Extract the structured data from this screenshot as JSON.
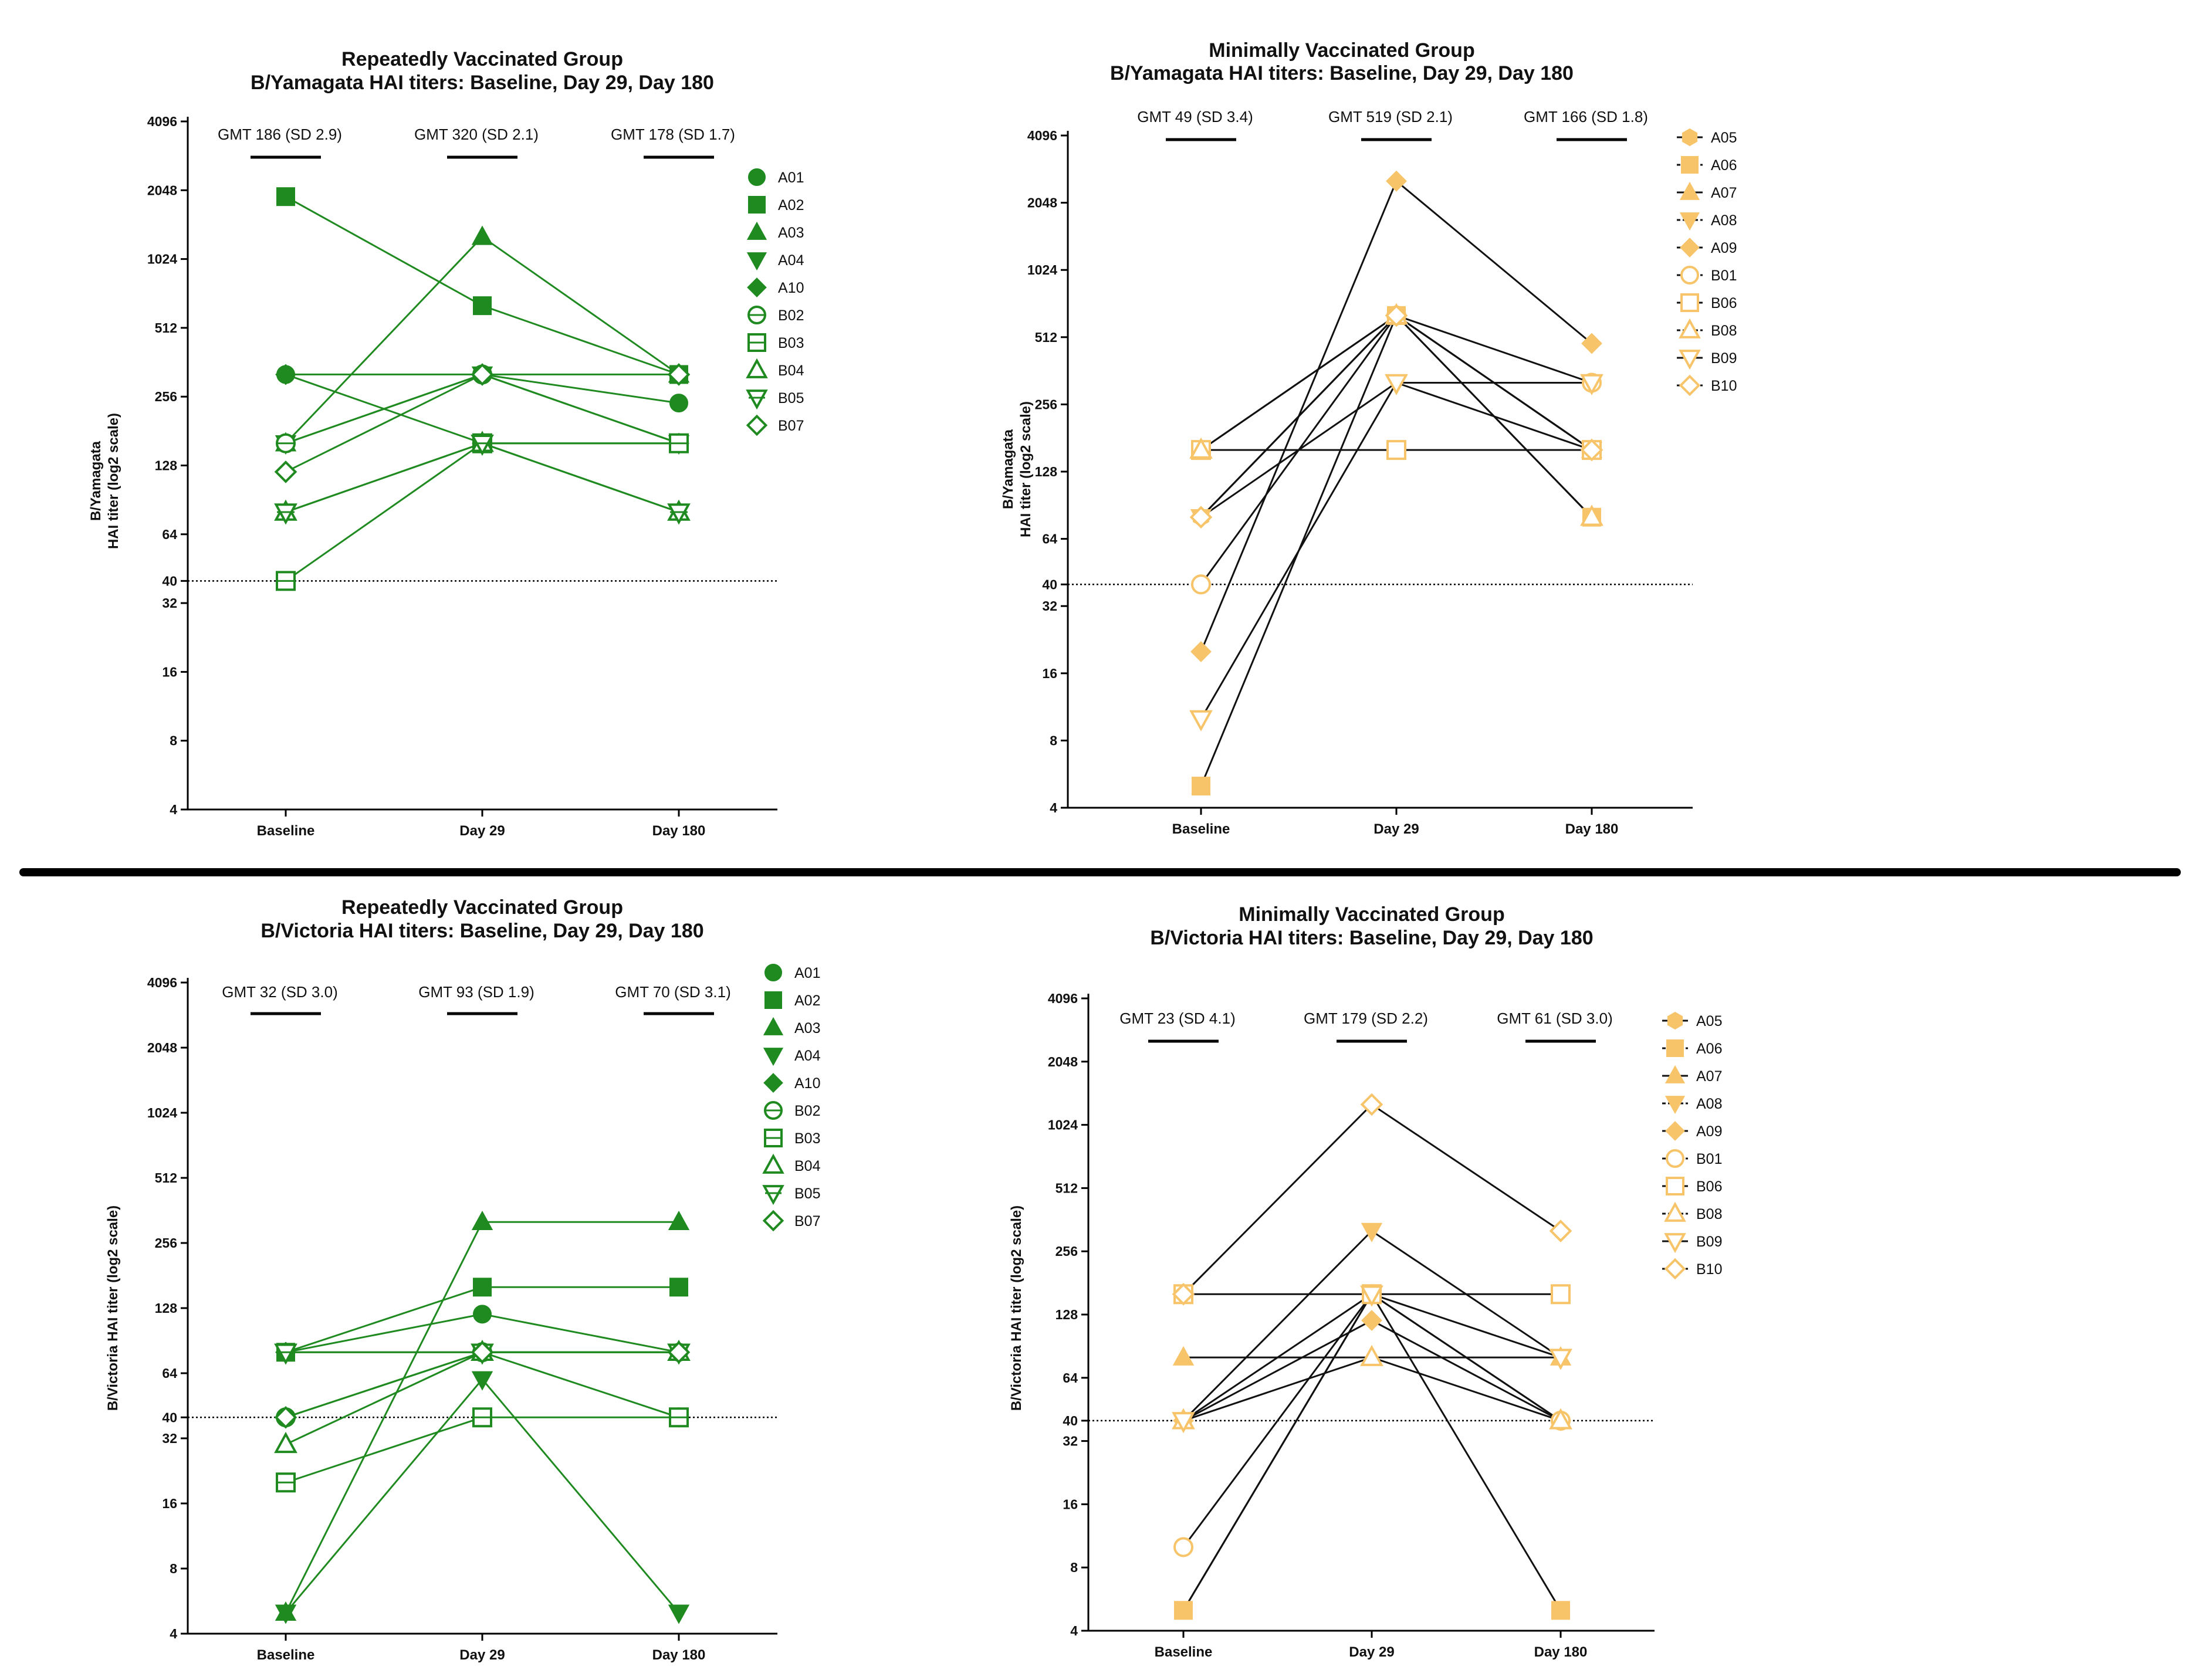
{
  "colors": {
    "green": "#1f8a1f",
    "gold": "#f7c46a",
    "line_black": "#111111"
  },
  "chart_data": [
    {
      "type": "line",
      "title": "Repeatedly Vaccinated Group",
      "subtitle": "B/Yamagata HAI titers: Baseline, Day 29, Day 180",
      "ylabel_lines": [
        "B/Yamagata",
        "HAI titer (log2 scale)"
      ],
      "categories": [
        "Baseline",
        "Day 29",
        "Day 180"
      ],
      "yscale": "log2",
      "ylim": [
        4,
        4096
      ],
      "yticks": [
        "4",
        "8",
        "16",
        "32",
        "40",
        "64",
        "128",
        "256",
        "512",
        "1024",
        "2048",
        "4096"
      ],
      "threshold": 40,
      "gmt_labels": [
        "GMT 186 (SD 2.9)",
        "GMT 320 (SD 2.1)",
        "GMT 178 (SD 1.7)"
      ],
      "legend": [
        "A01",
        "A02",
        "A03",
        "A04",
        "A10",
        "B02",
        "B03",
        "B04",
        "B05",
        "B07"
      ],
      "series": [
        {
          "name": "A01",
          "values": [
            320,
            320,
            240
          ]
        },
        {
          "name": "A02",
          "values": [
            1920,
            640,
            320
          ]
        },
        {
          "name": "A03",
          "values": [
            160,
            1280,
            320
          ]
        },
        {
          "name": "A04",
          "values": [
            160,
            320,
            160
          ]
        },
        {
          "name": "A10",
          "values": [
            320,
            160,
            160
          ]
        },
        {
          "name": "B02",
          "values": [
            160,
            320,
            160
          ]
        },
        {
          "name": "B03",
          "values": [
            40,
            160,
            160
          ]
        },
        {
          "name": "B04",
          "values": [
            80,
            160,
            80
          ]
        },
        {
          "name": "B05",
          "values": [
            80,
            160,
            80
          ]
        },
        {
          "name": "B07",
          "values": [
            120,
            320,
            320
          ]
        }
      ]
    },
    {
      "type": "line",
      "title": "Minimally Vaccinated Group",
      "subtitle": "B/Yamagata HAI titers: Baseline, Day 29, Day 180",
      "ylabel_lines": [
        "B/Yamagata",
        "HAI titer (log2 scale)"
      ],
      "categories": [
        "Baseline",
        "Day 29",
        "Day 180"
      ],
      "yscale": "log2",
      "ylim": [
        4,
        4096
      ],
      "yticks": [
        "4",
        "8",
        "16",
        "32",
        "40",
        "64",
        "128",
        "256",
        "512",
        "1024",
        "2048",
        "4096"
      ],
      "threshold": 40,
      "gmt_labels": [
        "GMT 49 (SD 3.4)",
        "GMT 519 (SD 2.1)",
        "GMT 166 (SD 1.8)"
      ],
      "legend": [
        "A05",
        "A06",
        "A07",
        "A08",
        "A09",
        "B01",
        "B06",
        "B08",
        "B09",
        "B10"
      ],
      "series": [
        {
          "name": "A05",
          "values": [
            80,
            640,
            160
          ]
        },
        {
          "name": "A06",
          "values": [
            5,
            640,
            80
          ]
        },
        {
          "name": "A07",
          "values": [
            160,
            640,
            160
          ]
        },
        {
          "name": "A08",
          "values": [
            80,
            320,
            160
          ]
        },
        {
          "name": "A09",
          "values": [
            20,
            2560,
            480
          ]
        },
        {
          "name": "B01",
          "values": [
            40,
            640,
            320
          ]
        },
        {
          "name": "B06",
          "values": [
            160,
            160,
            160
          ]
        },
        {
          "name": "B08",
          "values": [
            160,
            640,
            80
          ]
        },
        {
          "name": "B09",
          "values": [
            10,
            320,
            320
          ]
        },
        {
          "name": "B10",
          "values": [
            80,
            640,
            160
          ]
        }
      ]
    },
    {
      "type": "line",
      "title": "Repeatedly Vaccinated Group",
      "subtitle": "B/Victoria HAI titers: Baseline, Day 29, Day 180",
      "ylabel_lines": [
        "B/Victoria HAI titer (log2 scale)"
      ],
      "categories": [
        "Baseline",
        "Day 29",
        "Day 180"
      ],
      "yscale": "log2",
      "ylim": [
        4,
        4096
      ],
      "yticks": [
        "4",
        "8",
        "16",
        "32",
        "40",
        "64",
        "128",
        "256",
        "512",
        "1024",
        "2048",
        "4096"
      ],
      "threshold": 40,
      "gmt_labels": [
        "GMT 32 (SD 3.0)",
        "GMT 93 (SD 1.9)",
        "GMT 70 (SD 3.1)"
      ],
      "legend": [
        "A01",
        "A02",
        "A03",
        "A04",
        "A10",
        "B02",
        "B03",
        "B04",
        "B05",
        "B07"
      ],
      "series": [
        {
          "name": "A01",
          "values": [
            80,
            120,
            80
          ]
        },
        {
          "name": "A02",
          "values": [
            80,
            160,
            160
          ]
        },
        {
          "name": "A03",
          "values": [
            5,
            320,
            320
          ]
        },
        {
          "name": "A04",
          "values": [
            5,
            60,
            5
          ]
        },
        {
          "name": "A10",
          "values": [
            80,
            80,
            80
          ]
        },
        {
          "name": "B02",
          "values": [
            40,
            80,
            40
          ]
        },
        {
          "name": "B03",
          "values": [
            20,
            40,
            40
          ]
        },
        {
          "name": "B04",
          "values": [
            30,
            80,
            80
          ]
        },
        {
          "name": "B05",
          "values": [
            80,
            80,
            80
          ]
        },
        {
          "name": "B07",
          "values": [
            40,
            80,
            80
          ]
        }
      ]
    },
    {
      "type": "line",
      "title": "Minimally Vaccinated Group",
      "subtitle": "B/Victoria HAI titers: Baseline, Day 29, Day 180",
      "ylabel_lines": [
        "B/Victoria HAI titer (log2 scale)"
      ],
      "categories": [
        "Baseline",
        "Day 29",
        "Day 180"
      ],
      "yscale": "log2",
      "ylim": [
        4,
        4096
      ],
      "yticks": [
        "4",
        "8",
        "16",
        "32",
        "40",
        "64",
        "128",
        "256",
        "512",
        "1024",
        "2048",
        "4096"
      ],
      "threshold": 40,
      "gmt_labels": [
        "GMT 23 (SD 4.1)",
        "GMT 179 (SD 2.2)",
        "GMT 61 (SD 3.0)"
      ],
      "legend": [
        "A05",
        "A06",
        "A07",
        "A08",
        "A09",
        "B01",
        "B06",
        "B08",
        "B09",
        "B10"
      ],
      "series": [
        {
          "name": "A05",
          "values": [
            5,
            160,
            40
          ]
        },
        {
          "name": "A06",
          "values": [
            5,
            160,
            5
          ]
        },
        {
          "name": "A07",
          "values": [
            80,
            80,
            80
          ]
        },
        {
          "name": "A08",
          "values": [
            40,
            320,
            80
          ]
        },
        {
          "name": "A09",
          "values": [
            40,
            120,
            40
          ]
        },
        {
          "name": "B01",
          "values": [
            10,
            160,
            40
          ]
        },
        {
          "name": "B06",
          "values": [
            160,
            160,
            160
          ]
        },
        {
          "name": "B08",
          "values": [
            40,
            80,
            40
          ]
        },
        {
          "name": "B09",
          "values": [
            40,
            160,
            80
          ]
        },
        {
          "name": "B10",
          "values": [
            160,
            1280,
            320
          ]
        }
      ]
    }
  ]
}
